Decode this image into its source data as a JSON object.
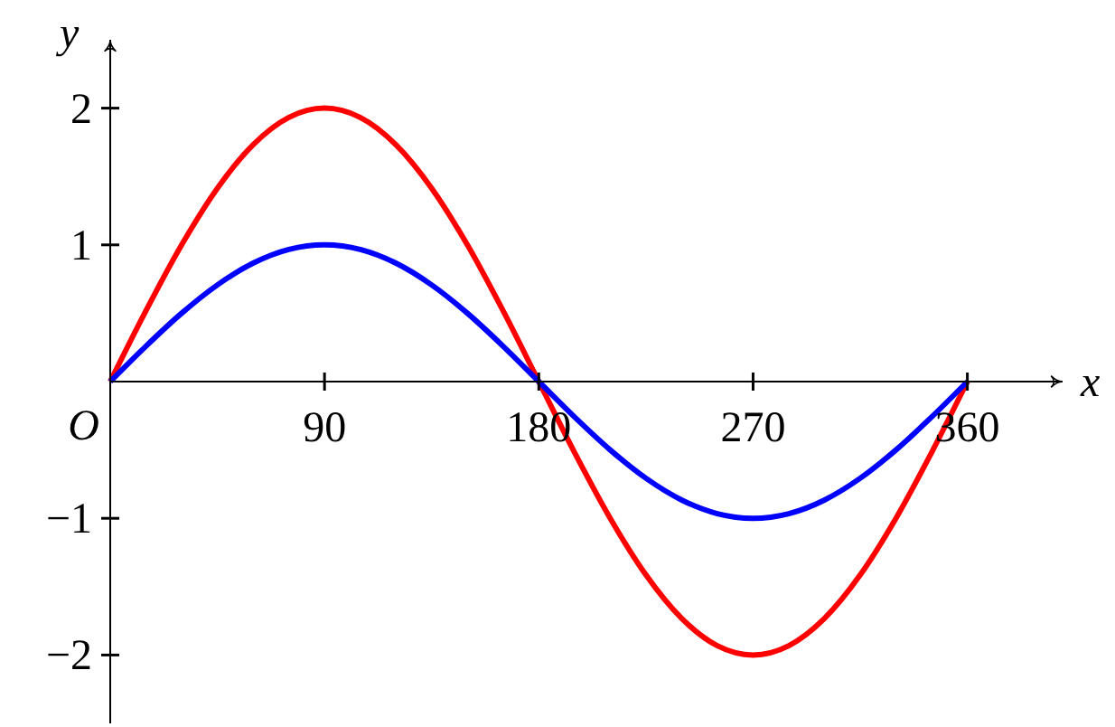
{
  "chart_data": {
    "type": "line",
    "xlabel": "x",
    "ylabel": "y",
    "x": [
      0,
      15,
      30,
      45,
      60,
      75,
      90,
      105,
      120,
      135,
      150,
      165,
      180,
      195,
      210,
      225,
      240,
      255,
      270,
      285,
      300,
      315,
      330,
      345,
      360
    ],
    "series": [
      {
        "color": "#ff0000",
        "values": [
          0,
          0.518,
          1,
          1.414,
          1.732,
          1.932,
          2,
          1.932,
          1.732,
          1.414,
          1,
          0.518,
          0,
          -0.518,
          -1,
          -1.414,
          -1.732,
          -1.932,
          -2,
          -1.932,
          -1.732,
          -1.414,
          -1,
          -0.518,
          0
        ]
      },
      {
        "color": "#0000ff",
        "values": [
          0,
          0.259,
          0.5,
          0.707,
          0.866,
          0.966,
          1,
          0.966,
          0.866,
          0.707,
          0.5,
          0.259,
          0,
          -0.259,
          -0.5,
          -0.707,
          -0.866,
          -0.966,
          -1,
          -0.966,
          -0.866,
          -0.707,
          -0.5,
          -0.259,
          0
        ]
      }
    ],
    "xlim": [
      0,
      400
    ],
    "ylim": [
      -2.5,
      2.5
    ],
    "xticks": [
      90,
      180,
      270,
      360
    ],
    "yticks": [
      {
        "value": -2,
        "label": "−2"
      },
      {
        "value": -1,
        "label": "−1"
      },
      1,
      2
    ],
    "annotations": [
      {
        "text": "O",
        "x": 0,
        "y": 0
      }
    ]
  }
}
